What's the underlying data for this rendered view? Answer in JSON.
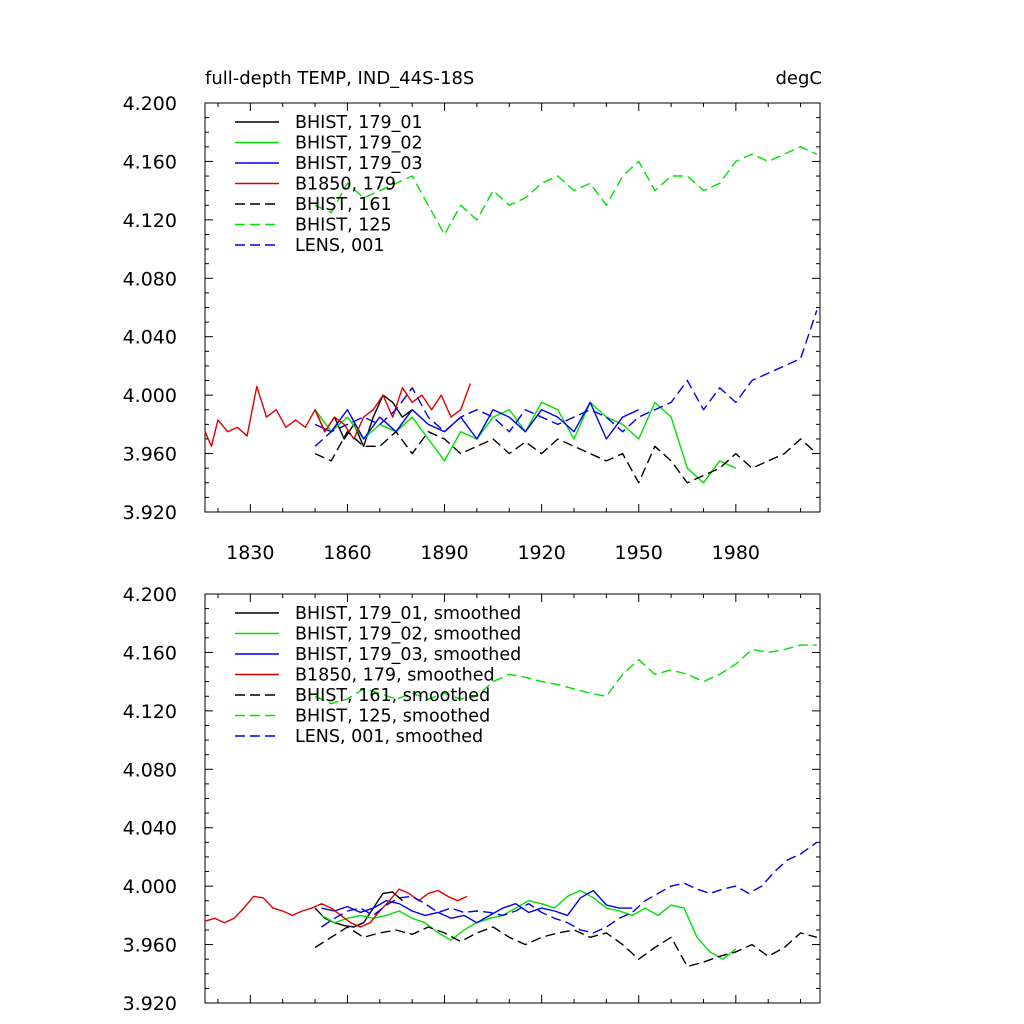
{
  "header": {
    "left_title": "full-depth TEMP, IND_44S-18S",
    "right_title": "degC"
  },
  "chart_data": [
    {
      "type": "line",
      "xlim": [
        1816,
        2006
      ],
      "ylim": [
        3.92,
        4.2
      ],
      "xticks": [
        1830,
        1860,
        1890,
        1920,
        1950,
        1980
      ],
      "xtick_labels": [
        "1830",
        "1860",
        "1890",
        "1920",
        "1950",
        "1980"
      ],
      "yticks": [
        3.92,
        3.96,
        4.0,
        4.04,
        4.08,
        4.12,
        4.16,
        4.2
      ],
      "ytick_labels": [
        "3.920",
        "3.960",
        "4.000",
        "4.040",
        "4.080",
        "4.120",
        "4.160",
        "4.200"
      ],
      "legend_position": "top-left",
      "series": [
        {
          "name": "BHIST, 179_01",
          "color": "#000000",
          "dash": "solid",
          "x": [
            1850,
            1853,
            1856,
            1859,
            1862,
            1865,
            1868,
            1871,
            1874,
            1877,
            1880
          ],
          "y": [
            3.99,
            3.975,
            3.985,
            3.97,
            3.98,
            3.965,
            3.985,
            4.0,
            3.995,
            3.985,
            3.99
          ]
        },
        {
          "name": "BHIST, 179_02",
          "color": "#00e000",
          "dash": "solid",
          "x": [
            1850,
            1855,
            1860,
            1865,
            1870,
            1875,
            1880,
            1885,
            1890,
            1895,
            1900,
            1905,
            1910,
            1915,
            1920,
            1925,
            1930,
            1935,
            1940,
            1945,
            1950,
            1955,
            1960,
            1965,
            1970,
            1975,
            1980
          ],
          "y": [
            3.99,
            3.975,
            3.985,
            3.97,
            3.98,
            3.975,
            3.985,
            3.97,
            3.955,
            3.975,
            3.97,
            3.985,
            3.99,
            3.975,
            3.995,
            3.99,
            3.97,
            3.995,
            3.985,
            3.98,
            3.97,
            3.995,
            3.985,
            3.95,
            3.94,
            3.955,
            3.95
          ]
        },
        {
          "name": "BHIST, 179_03",
          "color": "#0000ee",
          "dash": "solid",
          "x": [
            1850,
            1855,
            1860,
            1865,
            1870,
            1875,
            1880,
            1885,
            1890,
            1895,
            1900,
            1905,
            1910,
            1915,
            1920,
            1925,
            1930,
            1935,
            1940,
            1945,
            1950
          ],
          "y": [
            3.98,
            3.975,
            3.99,
            3.97,
            3.985,
            3.975,
            3.99,
            3.98,
            3.975,
            3.985,
            3.97,
            3.99,
            3.985,
            3.975,
            3.99,
            3.985,
            3.975,
            3.995,
            3.97,
            3.985,
            3.99
          ]
        },
        {
          "name": "B1850, 179",
          "color": "#e00000",
          "dash": "solid",
          "x": [
            1816,
            1818,
            1820,
            1823,
            1826,
            1829,
            1832,
            1835,
            1838,
            1841,
            1844,
            1847,
            1850,
            1853,
            1856,
            1859,
            1862,
            1865,
            1868,
            1871,
            1874,
            1877,
            1880,
            1883,
            1886,
            1889,
            1892,
            1895,
            1898
          ],
          "y": [
            3.975,
            3.965,
            3.983,
            3.975,
            3.978,
            3.972,
            4.006,
            3.985,
            3.99,
            3.978,
            3.983,
            3.978,
            3.99,
            3.975,
            3.985,
            3.98,
            3.97,
            3.985,
            3.99,
            4.0,
            3.985,
            4.005,
            3.995,
            4.0,
            3.99,
            4.0,
            3.985,
            3.99,
            4.008
          ]
        },
        {
          "name": "BHIST, 161",
          "color": "#000000",
          "dash": "dashed",
          "x": [
            1850,
            1855,
            1860,
            1865,
            1870,
            1875,
            1880,
            1885,
            1890,
            1895,
            1900,
            1905,
            1910,
            1915,
            1920,
            1925,
            1930,
            1935,
            1940,
            1945,
            1950,
            1955,
            1960,
            1965,
            1970,
            1975,
            1980,
            1985,
            1990,
            1995,
            2000,
            2005
          ],
          "y": [
            3.96,
            3.955,
            3.975,
            3.965,
            3.965,
            3.975,
            3.96,
            3.975,
            3.97,
            3.96,
            3.965,
            3.97,
            3.96,
            3.968,
            3.96,
            3.97,
            3.965,
            3.96,
            3.955,
            3.96,
            3.94,
            3.965,
            3.955,
            3.94,
            3.945,
            3.95,
            3.96,
            3.95,
            3.955,
            3.96,
            3.97,
            3.96
          ]
        },
        {
          "name": "BHIST, 125",
          "color": "#00e000",
          "dash": "dashed",
          "x": [
            1850,
            1855,
            1860,
            1865,
            1870,
            1875,
            1880,
            1885,
            1890,
            1895,
            1900,
            1905,
            1910,
            1915,
            1920,
            1925,
            1930,
            1935,
            1940,
            1945,
            1950,
            1955,
            1960,
            1965,
            1970,
            1975,
            1980,
            1985,
            1990,
            1995,
            2000,
            2005
          ],
          "y": [
            4.13,
            4.125,
            4.145,
            4.135,
            4.14,
            4.145,
            4.15,
            4.13,
            4.11,
            4.13,
            4.12,
            4.14,
            4.13,
            4.135,
            4.145,
            4.15,
            4.14,
            4.145,
            4.13,
            4.15,
            4.16,
            4.14,
            4.15,
            4.15,
            4.14,
            4.145,
            4.16,
            4.165,
            4.16,
            4.165,
            4.17,
            4.165
          ]
        },
        {
          "name": "LENS, 001",
          "color": "#0000ee",
          "dash": "dashed",
          "x": [
            1850,
            1855,
            1860,
            1865,
            1870,
            1875,
            1880,
            1885,
            1890,
            1895,
            1900,
            1905,
            1910,
            1915,
            1920,
            1925,
            1930,
            1935,
            1940,
            1945,
            1950,
            1955,
            1960,
            1965,
            1970,
            1975,
            1980,
            1985,
            1990,
            1995,
            2000,
            2005
          ],
          "y": [
            3.965,
            3.975,
            3.98,
            3.985,
            3.98,
            3.99,
            4.005,
            3.985,
            3.975,
            3.985,
            3.99,
            3.985,
            3.975,
            3.99,
            3.985,
            3.98,
            3.985,
            3.99,
            3.985,
            3.975,
            3.985,
            3.99,
            3.995,
            4.01,
            3.99,
            4.005,
            3.995,
            4.01,
            4.015,
            4.02,
            4.025,
            4.058
          ]
        }
      ]
    },
    {
      "type": "line",
      "xlim": [
        1816,
        2006
      ],
      "ylim": [
        3.92,
        4.2
      ],
      "xticks": [
        1830,
        1860,
        1890,
        1920,
        1950,
        1980
      ],
      "yticks": [
        3.92,
        3.96,
        4.0,
        4.04,
        4.08,
        4.12,
        4.16,
        4.2
      ],
      "ytick_labels": [
        "3.920",
        "3.960",
        "4.000",
        "4.040",
        "4.080",
        "4.120",
        "4.160",
        "4.200"
      ],
      "legend_position": "top-left",
      "series": [
        {
          "name": "BHIST, 179_01, smoothed",
          "color": "#000000",
          "dash": "solid",
          "x": [
            1850,
            1853,
            1856,
            1859,
            1862,
            1865,
            1868,
            1871,
            1874,
            1877
          ],
          "y": [
            3.985,
            3.978,
            3.975,
            3.973,
            3.972,
            3.975,
            3.985,
            3.995,
            3.996,
            3.99
          ]
        },
        {
          "name": "BHIST, 179_02, smoothed",
          "color": "#00e000",
          "dash": "solid",
          "x": [
            1852,
            1856,
            1860,
            1864,
            1868,
            1872,
            1876,
            1880,
            1884,
            1888,
            1892,
            1896,
            1900,
            1904,
            1908,
            1912,
            1916,
            1920,
            1924,
            1928,
            1932,
            1936,
            1940,
            1944,
            1948,
            1952,
            1956,
            1960,
            1964,
            1968,
            1972,
            1976,
            1980
          ],
          "y": [
            3.98,
            3.975,
            3.978,
            3.98,
            3.978,
            3.98,
            3.983,
            3.978,
            3.975,
            3.968,
            3.963,
            3.97,
            3.975,
            3.978,
            3.98,
            3.985,
            3.99,
            3.988,
            3.985,
            3.993,
            3.997,
            3.992,
            3.985,
            3.983,
            3.98,
            3.985,
            3.98,
            3.987,
            3.985,
            3.965,
            3.955,
            3.95,
            3.957
          ]
        },
        {
          "name": "BHIST, 179_03, smoothed",
          "color": "#0000ee",
          "dash": "solid",
          "x": [
            1852,
            1856,
            1860,
            1864,
            1868,
            1872,
            1876,
            1880,
            1884,
            1888,
            1892,
            1896,
            1900,
            1904,
            1908,
            1912,
            1916,
            1920,
            1924,
            1928,
            1932,
            1936,
            1940,
            1944,
            1948
          ],
          "y": [
            3.985,
            3.983,
            3.986,
            3.982,
            3.985,
            3.99,
            3.988,
            3.983,
            3.98,
            3.982,
            3.978,
            3.98,
            3.975,
            3.98,
            3.985,
            3.988,
            3.982,
            3.985,
            3.983,
            3.98,
            3.992,
            3.997,
            3.987,
            3.985,
            3.985
          ]
        },
        {
          "name": "B1850, 179, smoothed",
          "color": "#e00000",
          "dash": "solid",
          "x": [
            1816,
            1819,
            1822,
            1825,
            1828,
            1831,
            1834,
            1837,
            1840,
            1843,
            1846,
            1849,
            1852,
            1855,
            1858,
            1861,
            1864,
            1867,
            1870,
            1873,
            1876,
            1879,
            1882,
            1885,
            1888,
            1891,
            1894,
            1897
          ],
          "y": [
            3.976,
            3.978,
            3.975,
            3.978,
            3.985,
            3.993,
            3.992,
            3.985,
            3.983,
            3.98,
            3.983,
            3.985,
            3.988,
            3.985,
            3.98,
            3.975,
            3.972,
            3.975,
            3.983,
            3.99,
            3.998,
            3.995,
            3.99,
            3.995,
            3.997,
            3.993,
            3.99,
            3.993
          ]
        },
        {
          "name": "BHIST, 161, smoothed",
          "color": "#000000",
          "dash": "dashed",
          "x": [
            1850,
            1855,
            1860,
            1865,
            1870,
            1875,
            1880,
            1885,
            1890,
            1895,
            1900,
            1905,
            1910,
            1915,
            1920,
            1925,
            1930,
            1935,
            1940,
            1945,
            1950,
            1955,
            1960,
            1965,
            1970,
            1975,
            1980,
            1985,
            1990,
            1995,
            2000,
            2005
          ],
          "y": [
            3.958,
            3.965,
            3.972,
            3.965,
            3.968,
            3.97,
            3.967,
            3.972,
            3.968,
            3.962,
            3.968,
            3.972,
            3.965,
            3.96,
            3.965,
            3.968,
            3.97,
            3.965,
            3.968,
            3.96,
            3.95,
            3.958,
            3.965,
            3.945,
            3.948,
            3.952,
            3.955,
            3.96,
            3.952,
            3.958,
            3.968,
            3.965
          ]
        },
        {
          "name": "BHIST, 125, smoothed",
          "color": "#00e000",
          "dash": "dashed",
          "x": [
            1850,
            1855,
            1860,
            1865,
            1870,
            1875,
            1880,
            1885,
            1890,
            1895,
            1900,
            1905,
            1910,
            1915,
            1920,
            1925,
            1930,
            1935,
            1940,
            1945,
            1950,
            1955,
            1960,
            1965,
            1970,
            1975,
            1980,
            1985,
            1990,
            1995,
            2000,
            2005
          ],
          "y": [
            4.13,
            4.125,
            4.128,
            4.135,
            4.132,
            4.128,
            4.132,
            4.128,
            4.132,
            4.128,
            4.13,
            4.14,
            4.145,
            4.143,
            4.14,
            4.138,
            4.135,
            4.132,
            4.13,
            4.145,
            4.155,
            4.145,
            4.148,
            4.145,
            4.14,
            4.145,
            4.152,
            4.162,
            4.16,
            4.162,
            4.165,
            4.165
          ]
        },
        {
          "name": "LENS, 001, smoothed",
          "color": "#0000ee",
          "dash": "dashed",
          "x": [
            1852,
            1856,
            1860,
            1864,
            1868,
            1872,
            1876,
            1880,
            1884,
            1888,
            1892,
            1896,
            1900,
            1904,
            1908,
            1912,
            1916,
            1920,
            1924,
            1928,
            1932,
            1936,
            1940,
            1944,
            1948,
            1952,
            1956,
            1960,
            1964,
            1968,
            1972,
            1976,
            1980,
            1984,
            1988,
            1992,
            1996,
            2000,
            2005
          ],
          "y": [
            3.972,
            3.978,
            3.983,
            3.985,
            3.98,
            3.987,
            3.992,
            3.993,
            3.988,
            3.982,
            3.985,
            3.982,
            3.983,
            3.982,
            3.98,
            3.983,
            3.988,
            3.982,
            3.978,
            3.975,
            3.97,
            3.968,
            3.972,
            3.978,
            3.982,
            3.99,
            3.995,
            4.0,
            4.002,
            3.998,
            3.995,
            3.998,
            4.0,
            3.995,
            4.0,
            4.01,
            4.018,
            4.022,
            4.03
          ]
        }
      ]
    }
  ]
}
